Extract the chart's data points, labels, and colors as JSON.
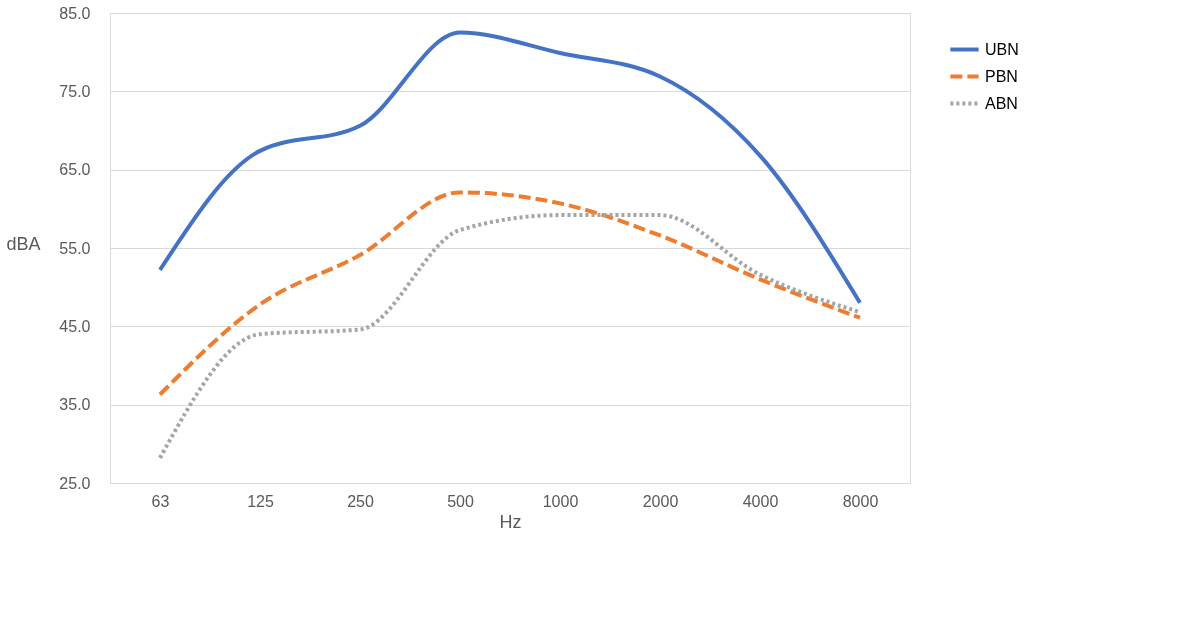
{
  "chart_data": {
    "type": "line",
    "xlabel": "Hz",
    "ylabel": "dBA",
    "categories": [
      "63",
      "125",
      "250",
      "500",
      "1000",
      "2000",
      "4000",
      "8000"
    ],
    "series": [
      {
        "name": "UBN",
        "color": "#4472c4",
        "line_style": "solid",
        "values": [
          52.2,
          67.4,
          70.6,
          82.5,
          79.9,
          76.9,
          66.8,
          48.0
        ]
      },
      {
        "name": "PBN",
        "color": "#ed7d31",
        "line_style": "dashed",
        "values": [
          36.3,
          47.8,
          54.1,
          62.1,
          60.7,
          56.6,
          51.0,
          46.1
        ]
      },
      {
        "name": "ABN",
        "color": "#a5a5a5",
        "line_style": "dotted",
        "values": [
          28.2,
          44.0,
          44.6,
          57.3,
          59.2,
          59.2,
          51.6,
          46.8
        ]
      }
    ],
    "ylim": [
      25,
      85
    ],
    "yticks": [
      {
        "value": 25,
        "label": "25.0"
      },
      {
        "value": 35,
        "label": "35.0"
      },
      {
        "value": 45,
        "label": "45.0"
      },
      {
        "value": 55,
        "label": "55.0"
      },
      {
        "value": 65,
        "label": "65.0"
      },
      {
        "value": 75,
        "label": "75.0"
      },
      {
        "value": 85,
        "label": "85.0"
      }
    ],
    "grid": "y",
    "legend": "right",
    "marker": "none"
  }
}
